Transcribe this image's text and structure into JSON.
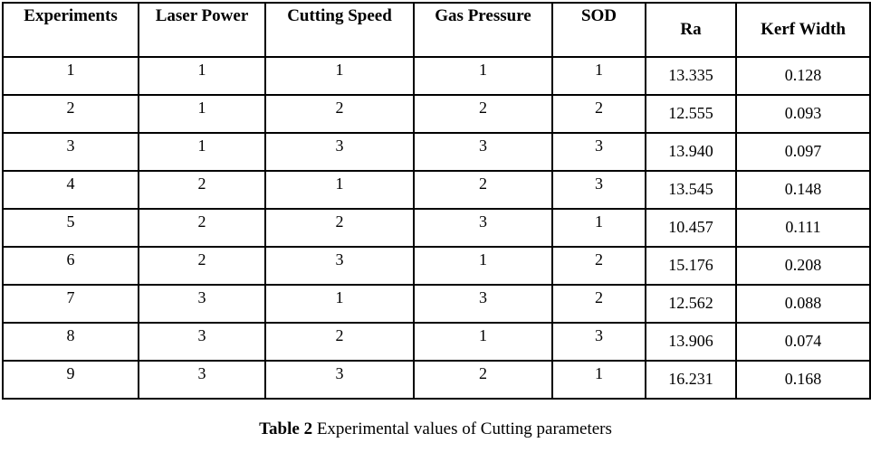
{
  "table": {
    "columns": [
      "Experiments",
      "Laser Power",
      "Cutting Speed",
      "Gas Pressure",
      "SOD",
      "Ra",
      "Kerf Width"
    ],
    "rows": [
      [
        "1",
        "1",
        "1",
        "1",
        "1",
        "13.335",
        "0.128"
      ],
      [
        "2",
        "1",
        "2",
        "2",
        "2",
        "12.555",
        "0.093"
      ],
      [
        "3",
        "1",
        "3",
        "3",
        "3",
        "13.940",
        "0.097"
      ],
      [
        "4",
        "2",
        "1",
        "2",
        "3",
        "13.545",
        "0.148"
      ],
      [
        "5",
        "2",
        "2",
        "3",
        "1",
        "10.457",
        "0.111"
      ],
      [
        "6",
        "2",
        "3",
        "1",
        "2",
        "15.176",
        "0.208"
      ],
      [
        "7",
        "3",
        "1",
        "3",
        "2",
        "12.562",
        "0.088"
      ],
      [
        "8",
        "3",
        "2",
        "1",
        "3",
        "13.906",
        "0.074"
      ],
      [
        "9",
        "3",
        "3",
        "2",
        "1",
        "16.231",
        "0.168"
      ]
    ]
  },
  "caption": {
    "label": "Table 2",
    "text": " Experimental values of Cutting parameters"
  },
  "colors": {
    "border": "#000000",
    "text": "#000000",
    "background": "#ffffff"
  }
}
